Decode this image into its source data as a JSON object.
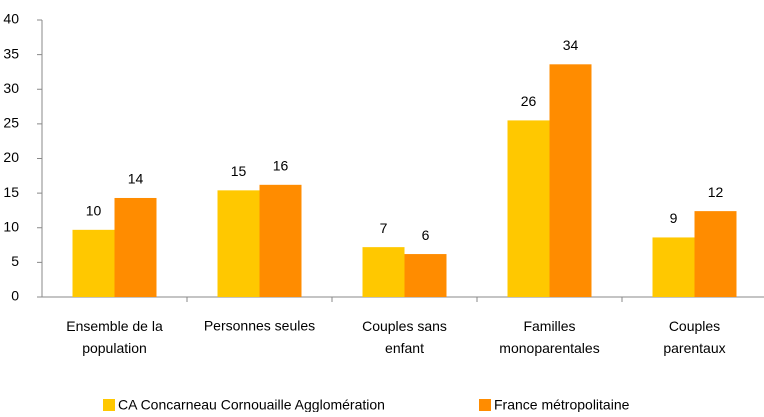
{
  "chart_data": {
    "type": "bar",
    "categories": [
      "Ensemble de la\npopulation",
      "Personnes seules",
      "Couples sans\nenfant",
      "Familles\nmonoparentales",
      "Couples\nparentaux"
    ],
    "series": [
      {
        "name": "CA Concarneau Cornouaille Agglomération",
        "color": "#ffc800",
        "values": [
          9.7,
          15.4,
          7.2,
          25.5,
          8.6
        ],
        "value_labels": [
          "10",
          "15",
          "7",
          "26",
          "9"
        ]
      },
      {
        "name": "France métropolitaine",
        "color": "#ff8c00",
        "values": [
          14.3,
          16.2,
          6.2,
          33.6,
          12.4
        ],
        "value_labels": [
          "14",
          "16",
          "6",
          "34",
          "12"
        ]
      }
    ],
    "ylim": [
      0,
      40
    ],
    "yticks": [
      0,
      5,
      10,
      15,
      20,
      25,
      30,
      35,
      40
    ],
    "grid": false,
    "legend": "bottom"
  }
}
